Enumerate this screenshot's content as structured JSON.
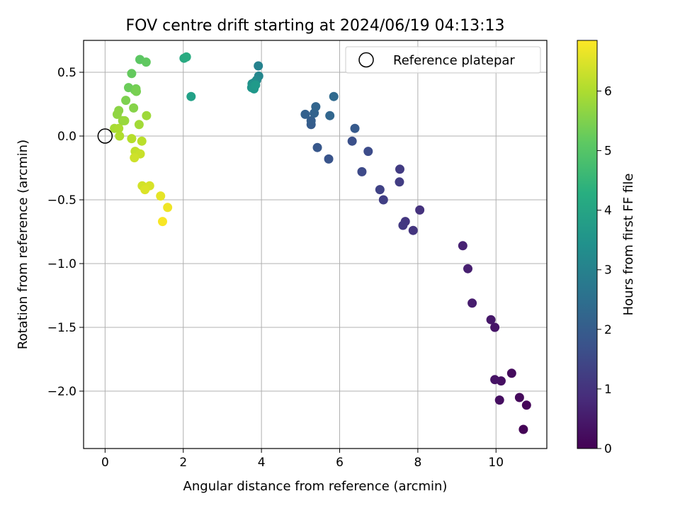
{
  "chart_data": {
    "type": "scatter",
    "title": "FOV centre drift starting at 2024/06/19 04:13:13",
    "xlabel": "Angular distance from reference (arcmin)",
    "ylabel": "Rotation from reference (arcmin)",
    "xlim": [
      -0.55,
      11.3
    ],
    "ylim": [
      -2.45,
      0.75
    ],
    "xticks": [
      0,
      2,
      4,
      6,
      8,
      10
    ],
    "xtick_labels": [
      "0",
      "2",
      "4",
      "6",
      "8",
      "10"
    ],
    "yticks": [
      0.5,
      0.0,
      -0.5,
      -1.0,
      -1.5,
      -2.0
    ],
    "ytick_labels": [
      "0.5",
      "0.0",
      "−0.5",
      "−1.0",
      "−1.5",
      "−2.0"
    ],
    "grid": true,
    "legend": {
      "position": "upper right",
      "label": "Reference platepar",
      "marker": "open circle"
    },
    "reference_point": {
      "x": 0.0,
      "y": 0.0
    },
    "colorbar": {
      "label": "Hours from first FF file",
      "range": [
        0,
        6.85
      ],
      "ticks": [
        0,
        1,
        2,
        3,
        4,
        5,
        6
      ],
      "tick_labels": [
        "0",
        "1",
        "2",
        "3",
        "4",
        "5",
        "6"
      ],
      "colormap": "viridis"
    },
    "points": [
      {
        "x": 10.7,
        "y": -2.3,
        "h": 0.05
      },
      {
        "x": 10.78,
        "y": -2.11,
        "h": 0.1
      },
      {
        "x": 10.6,
        "y": -2.05,
        "h": 0.15
      },
      {
        "x": 10.09,
        "y": -2.07,
        "h": 0.25
      },
      {
        "x": 10.13,
        "y": -1.92,
        "h": 0.3
      },
      {
        "x": 9.97,
        "y": -1.91,
        "h": 0.35
      },
      {
        "x": 10.4,
        "y": -1.86,
        "h": 0.2
      },
      {
        "x": 9.97,
        "y": -1.5,
        "h": 0.4
      },
      {
        "x": 9.87,
        "y": -1.44,
        "h": 0.45
      },
      {
        "x": 9.39,
        "y": -1.31,
        "h": 0.55
      },
      {
        "x": 9.28,
        "y": -1.04,
        "h": 0.6
      },
      {
        "x": 9.15,
        "y": -0.86,
        "h": 0.65
      },
      {
        "x": 8.05,
        "y": -0.58,
        "h": 1.0
      },
      {
        "x": 7.88,
        "y": -0.74,
        "h": 1.05
      },
      {
        "x": 7.68,
        "y": -0.67,
        "h": 1.1
      },
      {
        "x": 7.62,
        "y": -0.7,
        "h": 1.15
      },
      {
        "x": 7.12,
        "y": -0.5,
        "h": 1.3
      },
      {
        "x": 7.03,
        "y": -0.42,
        "h": 1.35
      },
      {
        "x": 7.53,
        "y": -0.36,
        "h": 1.25
      },
      {
        "x": 7.54,
        "y": -0.26,
        "h": 1.2
      },
      {
        "x": 6.57,
        "y": -0.28,
        "h": 1.55
      },
      {
        "x": 6.73,
        "y": -0.12,
        "h": 1.6
      },
      {
        "x": 6.32,
        "y": -0.04,
        "h": 1.7
      },
      {
        "x": 5.72,
        "y": -0.18,
        "h": 1.8
      },
      {
        "x": 5.43,
        "y": -0.09,
        "h": 1.9
      },
      {
        "x": 6.39,
        "y": 0.06,
        "h": 1.95
      },
      {
        "x": 5.27,
        "y": 0.09,
        "h": 2.0
      },
      {
        "x": 5.27,
        "y": 0.12,
        "h": 2.05
      },
      {
        "x": 5.12,
        "y": 0.17,
        "h": 2.1
      },
      {
        "x": 5.35,
        "y": 0.18,
        "h": 2.15
      },
      {
        "x": 5.39,
        "y": 0.23,
        "h": 2.2
      },
      {
        "x": 5.75,
        "y": 0.16,
        "h": 2.25
      },
      {
        "x": 5.85,
        "y": 0.31,
        "h": 2.35
      },
      {
        "x": 3.92,
        "y": 0.55,
        "h": 3.05
      },
      {
        "x": 3.93,
        "y": 0.47,
        "h": 3.15
      },
      {
        "x": 3.88,
        "y": 0.44,
        "h": 3.25
      },
      {
        "x": 3.82,
        "y": 0.42,
        "h": 3.35
      },
      {
        "x": 3.76,
        "y": 0.41,
        "h": 3.45
      },
      {
        "x": 3.75,
        "y": 0.38,
        "h": 3.55
      },
      {
        "x": 3.79,
        "y": 0.39,
        "h": 3.6
      },
      {
        "x": 3.81,
        "y": 0.37,
        "h": 3.65
      },
      {
        "x": 3.85,
        "y": 0.4,
        "h": 3.7
      },
      {
        "x": 2.2,
        "y": 0.31,
        "h": 3.9
      },
      {
        "x": 2.02,
        "y": 0.61,
        "h": 4.15
      },
      {
        "x": 2.08,
        "y": 0.62,
        "h": 4.2
      },
      {
        "x": 0.89,
        "y": 0.6,
        "h": 5.1
      },
      {
        "x": 1.05,
        "y": 0.58,
        "h": 5.15
      },
      {
        "x": 0.68,
        "y": 0.49,
        "h": 5.2
      },
      {
        "x": 0.6,
        "y": 0.38,
        "h": 5.3
      },
      {
        "x": 0.76,
        "y": 0.36,
        "h": 5.35
      },
      {
        "x": 0.79,
        "y": 0.37,
        "h": 5.4
      },
      {
        "x": 0.8,
        "y": 0.35,
        "h": 5.45
      },
      {
        "x": 0.53,
        "y": 0.28,
        "h": 5.5
      },
      {
        "x": 0.73,
        "y": 0.22,
        "h": 5.6
      },
      {
        "x": 0.35,
        "y": 0.2,
        "h": 5.65
      },
      {
        "x": 0.31,
        "y": 0.17,
        "h": 5.7
      },
      {
        "x": 0.45,
        "y": 0.12,
        "h": 5.75
      },
      {
        "x": 0.5,
        "y": 0.12,
        "h": 5.8
      },
      {
        "x": 1.06,
        "y": 0.16,
        "h": 5.85
      },
      {
        "x": 0.87,
        "y": 0.09,
        "h": 5.9
      },
      {
        "x": 0.24,
        "y": 0.06,
        "h": 5.95
      },
      {
        "x": 0.35,
        "y": 0.06,
        "h": 6.0
      },
      {
        "x": 0.37,
        "y": 0.0,
        "h": 6.05
      },
      {
        "x": 0.68,
        "y": -0.02,
        "h": 6.1
      },
      {
        "x": 0.94,
        "y": -0.04,
        "h": 6.15
      },
      {
        "x": 0.77,
        "y": -0.12,
        "h": 6.2
      },
      {
        "x": 0.81,
        "y": -0.13,
        "h": 6.25
      },
      {
        "x": 0.9,
        "y": -0.14,
        "h": 6.3
      },
      {
        "x": 0.75,
        "y": -0.17,
        "h": 6.35
      },
      {
        "x": 0.95,
        "y": -0.39,
        "h": 6.4
      },
      {
        "x": 1.14,
        "y": -0.39,
        "h": 6.45
      },
      {
        "x": 1.02,
        "y": -0.42,
        "h": 6.5
      },
      {
        "x": 1.42,
        "y": -0.47,
        "h": 6.6
      },
      {
        "x": 1.6,
        "y": -0.56,
        "h": 6.7
      },
      {
        "x": 1.47,
        "y": -0.67,
        "h": 6.8
      }
    ]
  }
}
